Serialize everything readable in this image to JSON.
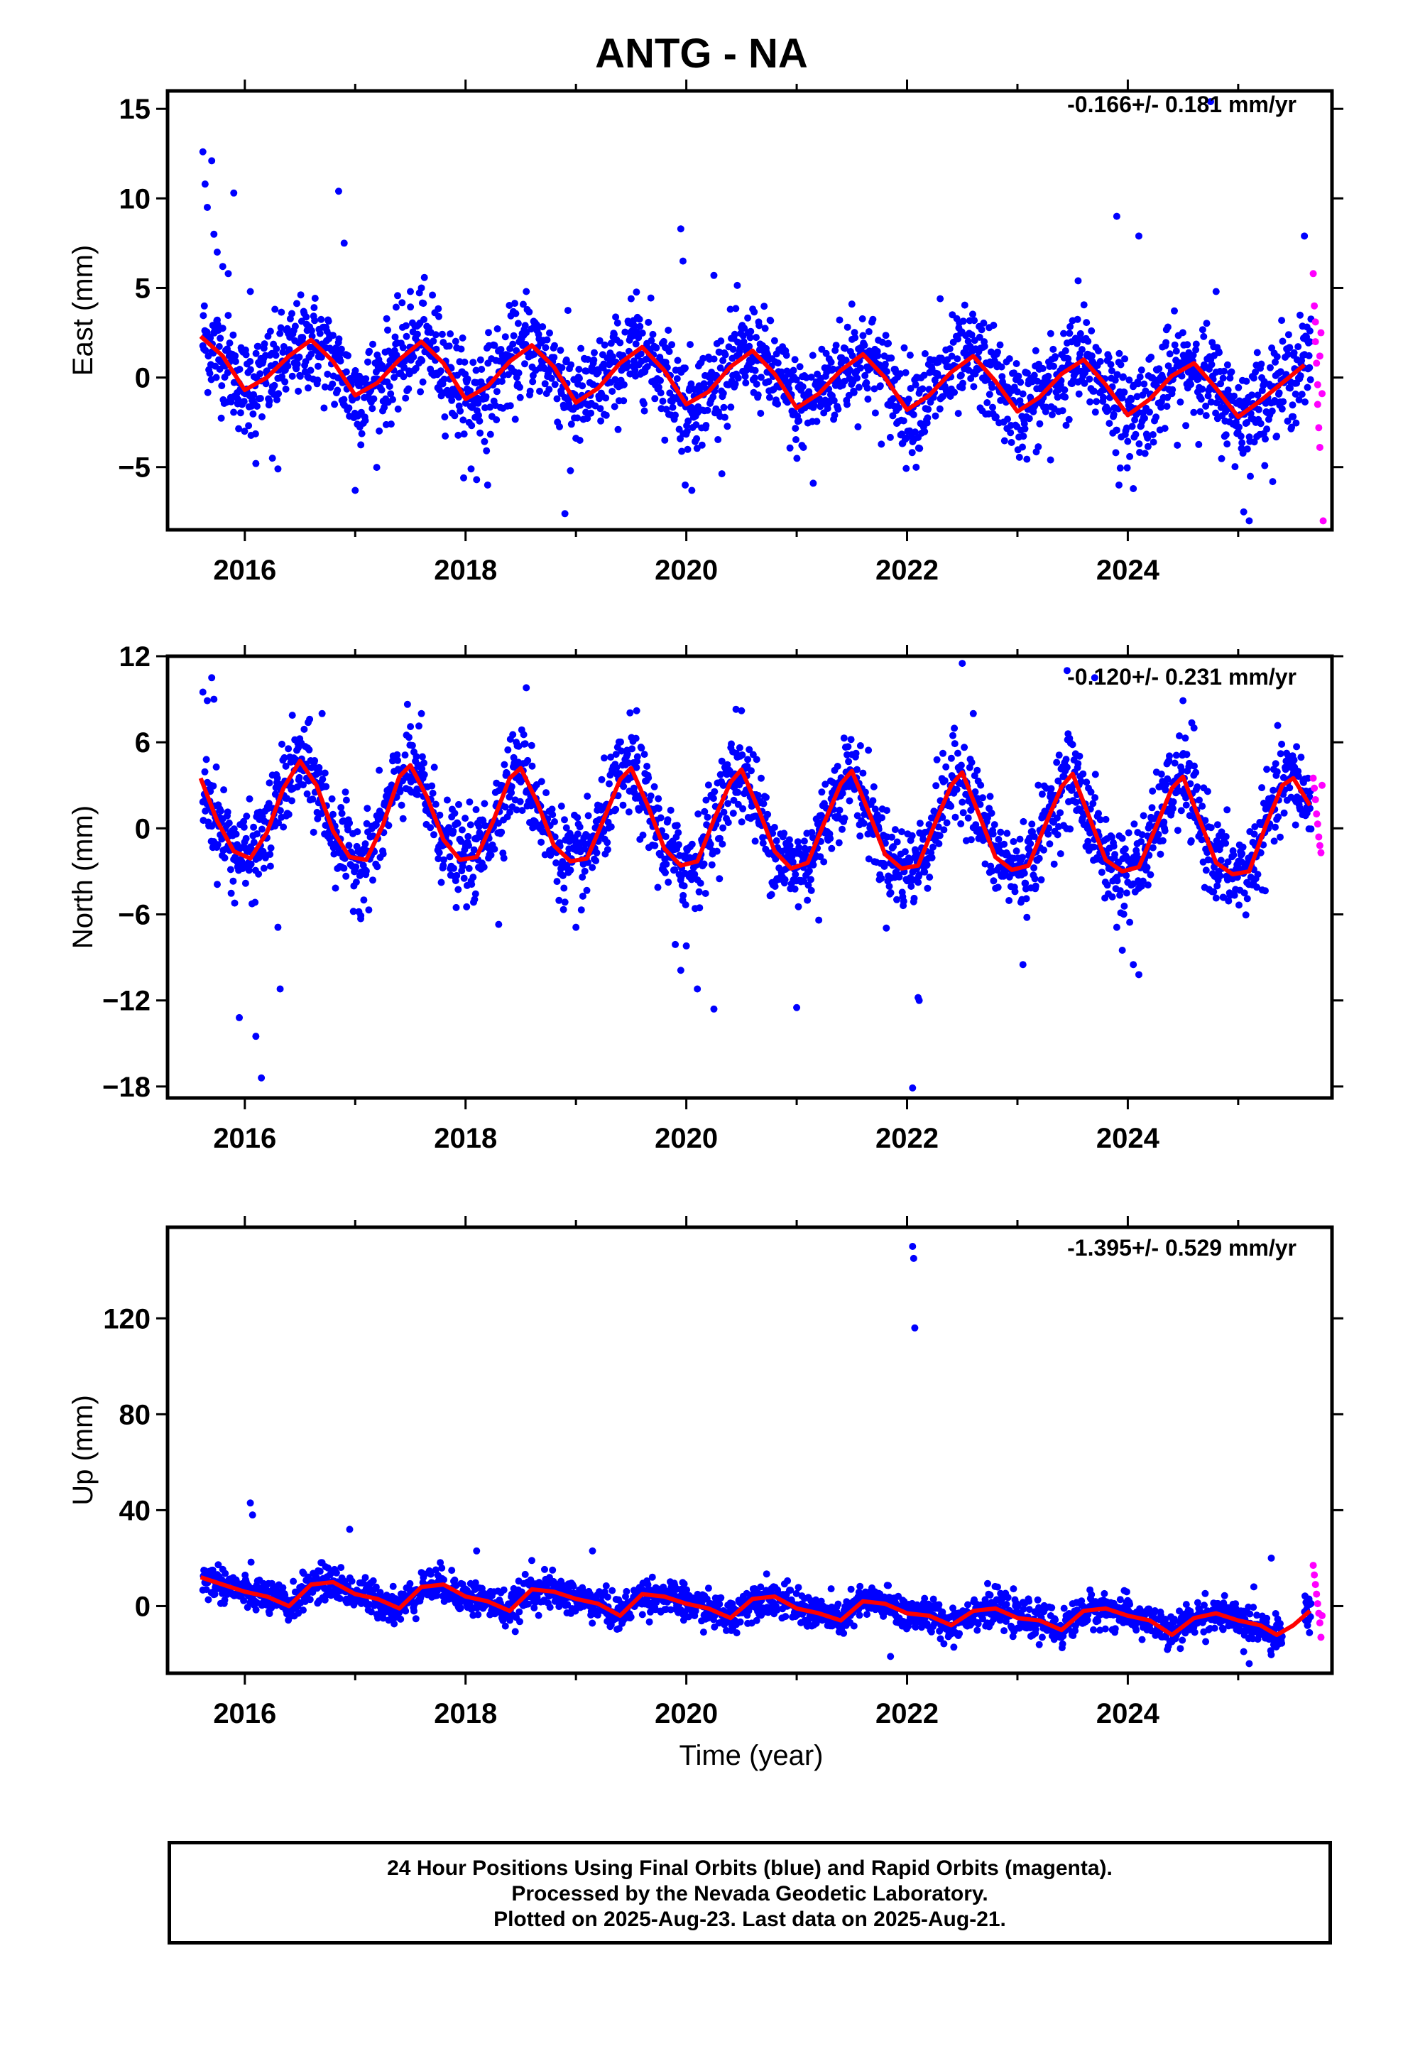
{
  "title": "ANTG - NA",
  "xlabel": "Time (year)",
  "footer": {
    "line1": "24 Hour Positions Using Final Orbits (blue) and Rapid Orbits (magenta).",
    "line2": "Processed by the Nevada Geodetic Laboratory.",
    "line3": "Plotted on 2025-Aug-23. Last data on 2025-Aug-21."
  },
  "colors": {
    "final": "#0000ff",
    "rapid": "#ff00ff",
    "fit": "#ff0000"
  },
  "chart_data": [
    {
      "type": "scatter",
      "component": "east",
      "ylabel": "East (mm)",
      "rate_text": "-0.166+/- 0.181 mm/yr",
      "xlim": [
        2015.3,
        2025.85
      ],
      "ylim": [
        -8.5,
        16
      ],
      "x_ticks": [
        2016,
        2018,
        2020,
        2022,
        2024
      ],
      "x_tick_labels": [
        "2016",
        "2018",
        "2020",
        "2022",
        "2024"
      ],
      "y_ticks": [
        -5,
        0,
        5,
        10,
        15
      ],
      "y_tick_labels": [
        "−5",
        "0",
        "5",
        "10",
        "15"
      ],
      "series": [
        {
          "kind": "fit",
          "x": [
            2015.6,
            2015.8,
            2016.0,
            2016.2,
            2016.4,
            2016.6,
            2016.8,
            2017.0,
            2017.2,
            2017.4,
            2017.6,
            2017.8,
            2018.0,
            2018.2,
            2018.4,
            2018.6,
            2018.8,
            2019.0,
            2019.2,
            2019.4,
            2019.6,
            2019.8,
            2020.0,
            2020.2,
            2020.4,
            2020.6,
            2020.8,
            2021.0,
            2021.2,
            2021.4,
            2021.6,
            2021.8,
            2022.0,
            2022.2,
            2022.4,
            2022.6,
            2022.8,
            2023.0,
            2023.2,
            2023.4,
            2023.6,
            2023.8,
            2024.0,
            2024.2,
            2024.4,
            2024.6,
            2024.8,
            2025.0,
            2025.2,
            2025.4,
            2025.6
          ],
          "y": [
            2.3,
            1.2,
            -0.7,
            0.0,
            1.2,
            2.1,
            0.9,
            -1.0,
            -0.3,
            1.0,
            2.0,
            0.8,
            -1.2,
            -0.5,
            0.9,
            1.8,
            0.6,
            -1.4,
            -0.6,
            0.8,
            1.7,
            0.4,
            -1.5,
            -0.8,
            0.6,
            1.5,
            0.2,
            -1.7,
            -0.9,
            0.4,
            1.3,
            0.0,
            -1.8,
            -1.0,
            0.3,
            1.2,
            -0.2,
            -1.9,
            -1.1,
            0.2,
            1.0,
            -0.4,
            -2.1,
            -1.2,
            0.1,
            0.8,
            -0.6,
            -2.2,
            -1.3,
            -0.3,
            0.7
          ]
        },
        {
          "kind": "final",
          "x": [
            2015.62,
            2015.64,
            2015.66,
            2015.7,
            2015.72,
            2015.75,
            2015.8,
            2015.85,
            2015.9,
            2016.05,
            2016.1,
            2016.25,
            2016.3,
            2016.85,
            2016.9,
            2017.0,
            2017.5,
            2017.6,
            2017.7,
            2018.05,
            2018.1,
            2018.2,
            2018.55,
            2018.9,
            2018.95,
            2019.5,
            2019.95,
            2019.97,
            2019.99,
            2020.05,
            2020.25,
            2021.15,
            2021.5,
            2022.3,
            2023.3,
            2023.55,
            2023.9,
            2023.92,
            2024.05,
            2024.1,
            2024.75,
            2024.8,
            2025.05,
            2025.1,
            2025.6,
            2025.65
          ],
          "y": [
            12.6,
            10.8,
            9.5,
            12.1,
            8.0,
            7.0,
            6.2,
            5.8,
            10.3,
            4.8,
            -4.8,
            -4.5,
            -5.1,
            10.4,
            7.5,
            -6.3,
            4.8,
            5.0,
            4.6,
            -5.1,
            -5.7,
            -6.0,
            4.8,
            -7.6,
            -5.2,
            4.4,
            8.3,
            6.5,
            -6.0,
            -6.3,
            5.7,
            -5.9,
            4.1,
            4.4,
            -4.6,
            5.4,
            9.0,
            -6.0,
            -6.2,
            7.9,
            15.4,
            4.8,
            -7.5,
            -8.0,
            7.9,
            2.6
          ]
        },
        {
          "kind": "rapid",
          "x": [
            2025.68,
            2025.69,
            2025.7,
            2025.7,
            2025.71,
            2025.72,
            2025.72,
            2025.73,
            2025.74,
            2025.74,
            2025.75,
            2025.76,
            2025.77
          ],
          "y": [
            5.8,
            4.0,
            3.1,
            2.0,
            0.8,
            -0.4,
            -1.5,
            -2.8,
            -3.9,
            1.2,
            2.5,
            -0.9,
            -8.0
          ]
        }
      ]
    },
    {
      "type": "scatter",
      "component": "north",
      "ylabel": "North (mm)",
      "rate_text": "-0.120+/- 0.231 mm/yr",
      "xlim": [
        2015.3,
        2025.85
      ],
      "ylim": [
        -18.8,
        12
      ],
      "x_ticks": [
        2016,
        2018,
        2020,
        2022,
        2024
      ],
      "x_tick_labels": [
        "2016",
        "2018",
        "2020",
        "2022",
        "2024"
      ],
      "y_ticks": [
        -18,
        -12,
        -6,
        0,
        6,
        12
      ],
      "y_tick_labels": [
        "−18",
        "−12",
        "−6",
        "0",
        "6",
        "12"
      ],
      "series": [
        {
          "kind": "fit",
          "x": [
            2015.6,
            2015.75,
            2015.9,
            2016.05,
            2016.2,
            2016.35,
            2016.5,
            2016.65,
            2016.8,
            2016.95,
            2017.1,
            2017.25,
            2017.4,
            2017.5,
            2017.65,
            2017.8,
            2017.95,
            2018.1,
            2018.25,
            2018.4,
            2018.5,
            2018.65,
            2018.8,
            2018.95,
            2019.1,
            2019.25,
            2019.4,
            2019.5,
            2019.65,
            2019.8,
            2019.95,
            2020.1,
            2020.25,
            2020.4,
            2020.5,
            2020.65,
            2020.8,
            2020.95,
            2021.1,
            2021.25,
            2021.4,
            2021.5,
            2021.65,
            2021.8,
            2021.95,
            2022.1,
            2022.25,
            2022.4,
            2022.5,
            2022.65,
            2022.8,
            2022.95,
            2023.1,
            2023.25,
            2023.4,
            2023.5,
            2023.65,
            2023.8,
            2023.95,
            2024.1,
            2024.25,
            2024.4,
            2024.5,
            2024.65,
            2024.8,
            2024.95,
            2025.1,
            2025.25,
            2025.4,
            2025.5,
            2025.65
          ],
          "y": [
            3.5,
            0.5,
            -1.6,
            -2.1,
            -0.3,
            2.8,
            4.7,
            3.0,
            -0.2,
            -2.0,
            -2.2,
            0.2,
            3.6,
            4.4,
            2.2,
            -0.8,
            -2.2,
            -2.0,
            0.5,
            3.5,
            4.2,
            1.8,
            -1.2,
            -2.3,
            -2.1,
            0.6,
            3.4,
            4.2,
            1.6,
            -1.4,
            -2.6,
            -2.3,
            0.6,
            3.2,
            4.1,
            1.4,
            -1.6,
            -2.8,
            -2.4,
            0.4,
            3.1,
            4.0,
            1.2,
            -1.8,
            -2.8,
            -2.6,
            0.3,
            3.0,
            3.9,
            1.0,
            -2.0,
            -2.9,
            -2.6,
            0.2,
            2.9,
            3.8,
            0.8,
            -2.2,
            -3.0,
            -2.7,
            0.0,
            2.8,
            3.6,
            0.6,
            -2.4,
            -3.2,
            -3.0,
            0.2,
            3.0,
            3.5,
            1.6
          ]
        },
        {
          "kind": "final",
          "x": [
            2015.62,
            2015.66,
            2015.7,
            2015.72,
            2015.95,
            2016.1,
            2016.15,
            2016.3,
            2016.32,
            2016.7,
            2017.05,
            2017.6,
            2018.3,
            2018.55,
            2019.0,
            2019.55,
            2019.9,
            2019.95,
            2020.0,
            2020.1,
            2020.25,
            2020.45,
            2020.5,
            2021.0,
            2021.2,
            2022.05,
            2022.1,
            2022.11,
            2022.5,
            2022.6,
            2023.05,
            2023.45,
            2023.7,
            2023.9,
            2023.95,
            2024.05,
            2024.1,
            2024.5,
            2024.6
          ],
          "y": [
            9.5,
            8.9,
            10.5,
            9.0,
            -13.2,
            -14.5,
            -17.4,
            -6.9,
            -11.2,
            8.0,
            -6.3,
            8.0,
            -6.7,
            9.8,
            -6.9,
            8.2,
            -8.1,
            -9.9,
            -8.2,
            -11.2,
            -12.6,
            8.3,
            8.2,
            -12.5,
            -6.4,
            -18.1,
            -11.8,
            -12.0,
            11.5,
            8.0,
            -9.5,
            11.0,
            10.5,
            -6.9,
            -8.5,
            -9.5,
            -10.2,
            8.9,
            7.0
          ]
        },
        {
          "kind": "rapid",
          "x": [
            2025.68,
            2025.69,
            2025.7,
            2025.71,
            2025.72,
            2025.73,
            2025.74,
            2025.75,
            2025.76
          ],
          "y": [
            3.5,
            2.8,
            2.0,
            1.0,
            0.3,
            -0.6,
            -1.2,
            -1.7,
            3.0
          ]
        }
      ]
    },
    {
      "type": "scatter",
      "component": "up",
      "ylabel": "Up (mm)",
      "rate_text": "-1.395+/- 0.529 mm/yr",
      "xlim": [
        2015.3,
        2025.85
      ],
      "ylim": [
        -28,
        158
      ],
      "x_ticks": [
        2016,
        2018,
        2020,
        2022,
        2024
      ],
      "x_tick_labels": [
        "2016",
        "2018",
        "2020",
        "2022",
        "2024"
      ],
      "y_ticks": [
        0,
        40,
        80,
        120
      ],
      "y_tick_labels": [
        "0",
        "40",
        "80",
        "120"
      ],
      "series": [
        {
          "kind": "fit",
          "x": [
            2015.6,
            2015.8,
            2016.0,
            2016.2,
            2016.4,
            2016.6,
            2016.8,
            2017.0,
            2017.2,
            2017.4,
            2017.6,
            2017.8,
            2018.0,
            2018.2,
            2018.4,
            2018.6,
            2018.8,
            2019.0,
            2019.2,
            2019.4,
            2019.6,
            2019.8,
            2020.0,
            2020.2,
            2020.4,
            2020.6,
            2020.8,
            2021.0,
            2021.2,
            2021.4,
            2021.6,
            2021.8,
            2022.0,
            2022.2,
            2022.4,
            2022.6,
            2022.8,
            2023.0,
            2023.2,
            2023.4,
            2023.6,
            2023.8,
            2024.0,
            2024.2,
            2024.4,
            2024.6,
            2024.8,
            2025.0,
            2025.2,
            2025.35,
            2025.5,
            2025.65
          ],
          "y": [
            12,
            9,
            6,
            4,
            0,
            9,
            10,
            5,
            3,
            -1,
            8,
            9,
            4,
            2,
            -2,
            7,
            6,
            3,
            1,
            -4,
            5,
            4,
            1,
            -1,
            -5,
            3,
            4,
            -1,
            -3,
            -6,
            2,
            1,
            -3,
            -4,
            -8,
            -2,
            -1,
            -5,
            -6,
            -10,
            -2,
            -1,
            -4,
            -6,
            -12,
            -5,
            -3,
            -6,
            -8,
            -12,
            -8,
            -2
          ]
        },
        {
          "kind": "final",
          "x": [
            2016.05,
            2016.07,
            2016.95,
            2018.1,
            2018.6,
            2019.15,
            2021.85,
            2022.05,
            2022.06,
            2022.07,
            2025.05,
            2025.1,
            2025.3
          ],
          "y": [
            43,
            38,
            32,
            23,
            19,
            23,
            -21,
            150,
            145,
            116,
            -19,
            -24,
            20
          ]
        },
        {
          "kind": "rapid",
          "x": [
            2025.68,
            2025.69,
            2025.7,
            2025.71,
            2025.72,
            2025.73,
            2025.74,
            2025.75,
            2025.76
          ],
          "y": [
            17,
            13,
            9,
            5,
            1,
            -3,
            -7,
            -13,
            -4
          ]
        }
      ]
    }
  ]
}
